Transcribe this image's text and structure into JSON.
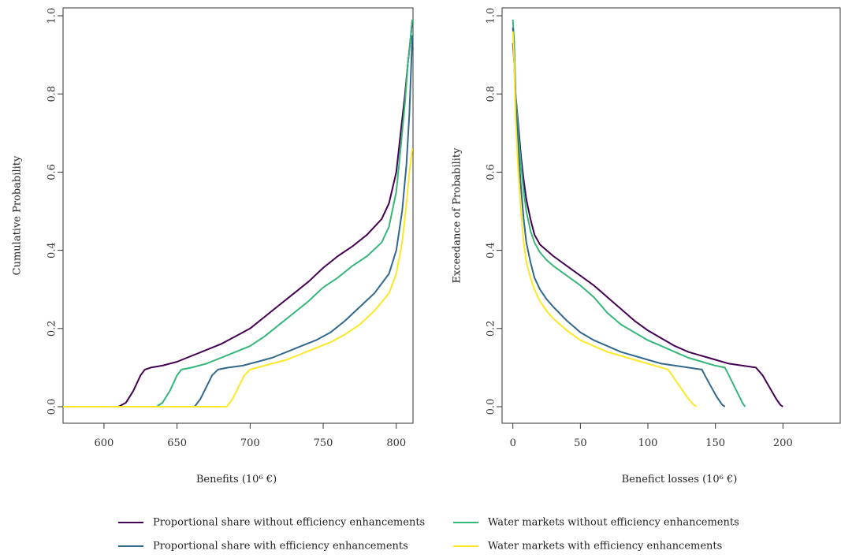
{
  "colors": {
    "prop_without": "#440154",
    "water_without": "#35b779",
    "prop_with": "#31688e",
    "water_with": "#fde725"
  },
  "legend": [
    {
      "label": "Proportional share without efficiency enhancements",
      "color": "#440154"
    },
    {
      "label": "Water markets without efficiency enhancements",
      "color": "#35b779"
    },
    {
      "label": "Proportional share with efficiency enhancements",
      "color": "#31688e"
    },
    {
      "label": "Water markets with efficiency enhancements",
      "color": "#fde725"
    }
  ],
  "chart_data": [
    {
      "type": "line",
      "xlabel": "Benefits",
      "xlabel_unit": "(10⁶ €)",
      "ylabel": "Cumulative Probability",
      "xlim": [
        572,
        812
      ],
      "ylim": [
        0,
        1.0
      ],
      "xticks": [
        600,
        650,
        700,
        750,
        800
      ],
      "yticks": [
        0.0,
        0.2,
        0.4,
        0.6,
        0.8,
        1.0
      ],
      "series": [
        {
          "key": "prop_without",
          "color": "#440154",
          "x": [
            572,
            610,
            615,
            620,
            625,
            628,
            632,
            640,
            650,
            660,
            670,
            680,
            690,
            700,
            710,
            720,
            730,
            740,
            750,
            760,
            770,
            780,
            790,
            795,
            800,
            803,
            806,
            808,
            810,
            811
          ],
          "y": [
            0,
            0,
            0.01,
            0.04,
            0.08,
            0.095,
            0.1,
            0.105,
            0.115,
            0.13,
            0.145,
            0.16,
            0.18,
            0.2,
            0.23,
            0.26,
            0.29,
            0.32,
            0.355,
            0.385,
            0.41,
            0.44,
            0.48,
            0.52,
            0.6,
            0.7,
            0.8,
            0.88,
            0.95,
            0.99
          ]
        },
        {
          "key": "water_without",
          "color": "#35b779",
          "x": [
            572,
            636,
            640,
            645,
            650,
            653,
            660,
            670,
            680,
            690,
            700,
            710,
            720,
            730,
            740,
            750,
            760,
            770,
            780,
            790,
            795,
            800,
            803,
            806,
            808,
            810,
            811
          ],
          "y": [
            0,
            0,
            0.01,
            0.04,
            0.08,
            0.095,
            0.1,
            0.11,
            0.125,
            0.14,
            0.155,
            0.18,
            0.21,
            0.24,
            0.27,
            0.305,
            0.33,
            0.36,
            0.385,
            0.42,
            0.46,
            0.55,
            0.66,
            0.78,
            0.88,
            0.95,
            0.99
          ]
        },
        {
          "key": "prop_with",
          "color": "#31688e",
          "x": [
            572,
            662,
            666,
            670,
            674,
            678,
            685,
            695,
            705,
            715,
            725,
            735,
            745,
            755,
            765,
            775,
            785,
            795,
            800,
            804,
            807,
            809,
            810,
            811
          ],
          "y": [
            0,
            0,
            0.02,
            0.05,
            0.08,
            0.095,
            0.1,
            0.105,
            0.115,
            0.125,
            0.14,
            0.155,
            0.17,
            0.19,
            0.22,
            0.255,
            0.29,
            0.34,
            0.4,
            0.5,
            0.62,
            0.75,
            0.85,
            0.95
          ]
        },
        {
          "key": "water_with",
          "color": "#fde725",
          "x": [
            572,
            684,
            688,
            692,
            696,
            700,
            705,
            715,
            725,
            735,
            745,
            755,
            765,
            775,
            785,
            795,
            800,
            804,
            807,
            809,
            810,
            811
          ],
          "y": [
            0,
            0,
            0.02,
            0.05,
            0.08,
            0.095,
            0.1,
            0.11,
            0.12,
            0.135,
            0.15,
            0.165,
            0.185,
            0.21,
            0.245,
            0.29,
            0.34,
            0.42,
            0.52,
            0.6,
            0.63,
            0.66
          ]
        }
      ]
    },
    {
      "type": "line",
      "xlabel": "Benefict losses",
      "xlabel_unit": "(10⁶ €)",
      "ylabel": "Exceedance of Probability",
      "xlim": [
        -8,
        243
      ],
      "ylim": [
        0,
        1.0
      ],
      "xticks": [
        0,
        50,
        100,
        150,
        200
      ],
      "yticks": [
        0.0,
        0.2,
        0.4,
        0.6,
        0.8,
        1.0
      ],
      "series": [
        {
          "key": "prop_without",
          "color": "#440154",
          "x": [
            0,
            1,
            2,
            4,
            6,
            8,
            10,
            13,
            16,
            20,
            25,
            30,
            40,
            50,
            60,
            70,
            80,
            90,
            100,
            110,
            120,
            130,
            140,
            150,
            160,
            170,
            180,
            185,
            190,
            195,
            198,
            200
          ],
          "y": [
            0.93,
            0.88,
            0.8,
            0.72,
            0.64,
            0.58,
            0.53,
            0.48,
            0.44,
            0.415,
            0.4,
            0.385,
            0.36,
            0.335,
            0.31,
            0.28,
            0.25,
            0.22,
            0.195,
            0.175,
            0.155,
            0.14,
            0.13,
            0.12,
            0.11,
            0.105,
            0.1,
            0.08,
            0.05,
            0.02,
            0.005,
            0
          ]
        },
        {
          "key": "water_without",
          "color": "#35b779",
          "x": [
            0,
            1,
            2,
            4,
            6,
            8,
            10,
            13,
            16,
            20,
            25,
            30,
            40,
            50,
            60,
            70,
            80,
            90,
            100,
            110,
            120,
            130,
            140,
            150,
            157,
            160,
            165,
            170,
            172
          ],
          "y": [
            0.99,
            0.93,
            0.8,
            0.7,
            0.62,
            0.55,
            0.5,
            0.45,
            0.42,
            0.395,
            0.375,
            0.36,
            0.335,
            0.31,
            0.28,
            0.24,
            0.21,
            0.19,
            0.17,
            0.155,
            0.14,
            0.125,
            0.115,
            0.105,
            0.1,
            0.08,
            0.045,
            0.01,
            0
          ]
        },
        {
          "key": "prop_with",
          "color": "#31688e",
          "x": [
            0,
            1,
            2,
            4,
            6,
            8,
            10,
            13,
            16,
            20,
            25,
            30,
            40,
            50,
            60,
            70,
            80,
            90,
            100,
            110,
            120,
            130,
            140,
            143,
            147,
            151,
            155,
            157
          ],
          "y": [
            0.97,
            0.9,
            0.78,
            0.66,
            0.56,
            0.48,
            0.42,
            0.37,
            0.33,
            0.3,
            0.275,
            0.255,
            0.22,
            0.19,
            0.17,
            0.155,
            0.14,
            0.13,
            0.12,
            0.11,
            0.105,
            0.1,
            0.095,
            0.075,
            0.05,
            0.025,
            0.005,
            0
          ]
        },
        {
          "key": "water_with",
          "color": "#fde725",
          "x": [
            0,
            1,
            2,
            4,
            6,
            8,
            10,
            13,
            16,
            20,
            25,
            30,
            40,
            50,
            60,
            70,
            80,
            90,
            100,
            110,
            115,
            120,
            125,
            130,
            134,
            136
          ],
          "y": [
            0.96,
            0.88,
            0.74,
            0.6,
            0.5,
            0.42,
            0.37,
            0.33,
            0.3,
            0.27,
            0.245,
            0.225,
            0.195,
            0.17,
            0.155,
            0.14,
            0.13,
            0.12,
            0.11,
            0.1,
            0.095,
            0.07,
            0.045,
            0.02,
            0.005,
            0
          ]
        }
      ]
    }
  ]
}
